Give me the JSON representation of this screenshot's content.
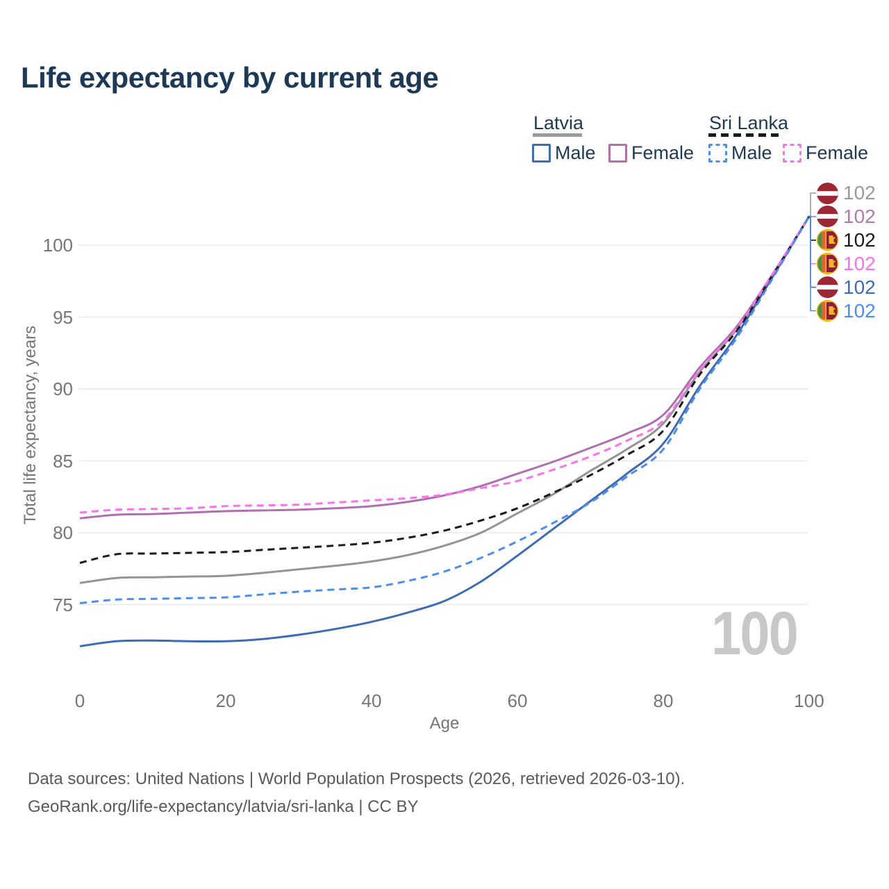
{
  "title": "Life expectancy by current age",
  "watermark": "100",
  "footer": {
    "line1": "Data sources: United Nations | World Population Prospects (2026, retrieved 2026-03-10).",
    "line2": "GeoRank.org/life-expectancy/latvia/sri-lanka | CC BY"
  },
  "legend": {
    "groups": [
      {
        "name": "Latvia",
        "line_style": "solid",
        "underline_color": "#9a9a9a",
        "items": [
          {
            "label": "Male",
            "color": "#3d6cb4"
          },
          {
            "label": "Female",
            "color": "#b06fae"
          }
        ]
      },
      {
        "name": "Sri Lanka",
        "line_style": "dashed",
        "underline_color": "#1a1a1a",
        "items": [
          {
            "label": "Male",
            "color": "#4b8df5"
          },
          {
            "label": "Female",
            "color": "#fb70ee"
          }
        ]
      }
    ]
  },
  "end_labels": [
    {
      "flag": "latvia",
      "series": "Latvia total",
      "value": "102",
      "color": "#9a9a9a"
    },
    {
      "flag": "latvia",
      "series": "Latvia female",
      "value": "102",
      "color": "#b07ab0"
    },
    {
      "flag": "sri-lanka",
      "series": "Sri Lanka total",
      "value": "102",
      "color": "#1a1a1a"
    },
    {
      "flag": "sri-lanka",
      "series": "Sri Lanka female",
      "value": "102",
      "color": "#fb70ee"
    },
    {
      "flag": "latvia",
      "series": "Latvia male",
      "value": "102",
      "color": "#3d6cb4"
    },
    {
      "flag": "sri-lanka",
      "series": "Sri Lanka male",
      "value": "102",
      "color": "#4b8df5"
    }
  ],
  "flag_colors": {
    "latvia": {
      "red": "#9E2735",
      "stripe": "#ffffff"
    },
    "sri_lanka": {
      "gold": "#F7B71C",
      "green": "#4a9345",
      "orange": "#E8632C",
      "maroon": "#8A1E41"
    }
  },
  "chart_data": {
    "type": "line",
    "title": "Life expectancy by current age",
    "xlabel": "Age",
    "ylabel": "Total life expectancy, years",
    "xlim": [
      0,
      100
    ],
    "ylim_displayed": [
      71.5,
      103
    ],
    "x_ticks": [
      0,
      20,
      40,
      60,
      80,
      100
    ],
    "y_ticks": [
      75,
      80,
      85,
      90,
      95,
      100
    ],
    "grid": "horizontal",
    "legend_position": "top-right",
    "x": [
      0,
      5,
      10,
      15,
      20,
      25,
      30,
      35,
      40,
      45,
      50,
      55,
      60,
      65,
      70,
      75,
      80,
      85,
      90,
      95,
      100
    ],
    "series": [
      {
        "name": "Latvia total",
        "country": "Latvia",
        "sex": "total",
        "style": "solid",
        "color": "#949494",
        "values": [
          76.5,
          76.85,
          76.9,
          76.95,
          77.0,
          77.2,
          77.45,
          77.7,
          78.0,
          78.45,
          79.1,
          80.0,
          81.35,
          82.7,
          84.3,
          85.8,
          87.6,
          91.2,
          94.1,
          97.9,
          102
        ]
      },
      {
        "name": "Latvia female",
        "country": "Latvia",
        "sex": "female",
        "style": "solid",
        "color": "#b06fae",
        "values": [
          81.0,
          81.25,
          81.3,
          81.4,
          81.5,
          81.55,
          81.6,
          81.7,
          81.85,
          82.15,
          82.6,
          83.25,
          84.1,
          84.95,
          85.9,
          86.9,
          88.2,
          91.5,
          94.3,
          98.0,
          102
        ]
      },
      {
        "name": "Latvia male",
        "country": "Latvia",
        "sex": "male",
        "style": "solid",
        "color": "#3d6cb4",
        "values": [
          72.1,
          72.45,
          72.5,
          72.45,
          72.45,
          72.6,
          72.9,
          73.3,
          73.8,
          74.45,
          75.25,
          76.6,
          78.4,
          80.3,
          82.2,
          84.1,
          86.2,
          90.2,
          93.7,
          97.8,
          102
        ]
      },
      {
        "name": "Sri Lanka total",
        "country": "Sri Lanka",
        "sex": "total",
        "style": "dashed",
        "color": "#1a1a1a",
        "values": [
          77.9,
          78.5,
          78.55,
          78.6,
          78.65,
          78.8,
          78.95,
          79.1,
          79.3,
          79.65,
          80.15,
          80.85,
          81.7,
          82.8,
          84.0,
          85.4,
          87.1,
          91.0,
          94.0,
          97.9,
          102
        ]
      },
      {
        "name": "Sri Lanka female",
        "country": "Sri Lanka",
        "sex": "female",
        "style": "dashed",
        "color": "#fb70ee",
        "values": [
          81.4,
          81.6,
          81.65,
          81.7,
          81.85,
          81.9,
          81.95,
          82.1,
          82.25,
          82.4,
          82.65,
          83.1,
          83.6,
          84.4,
          85.3,
          86.4,
          87.8,
          91.3,
          94.2,
          98.0,
          102
        ]
      },
      {
        "name": "Sri Lanka male",
        "country": "Sri Lanka",
        "sex": "male",
        "style": "dashed",
        "color": "#4b8df5",
        "values": [
          75.1,
          75.35,
          75.4,
          75.45,
          75.5,
          75.7,
          75.9,
          76.05,
          76.2,
          76.65,
          77.3,
          78.25,
          79.4,
          80.7,
          82.1,
          83.9,
          85.8,
          90.0,
          93.5,
          97.7,
          102
        ]
      }
    ]
  }
}
